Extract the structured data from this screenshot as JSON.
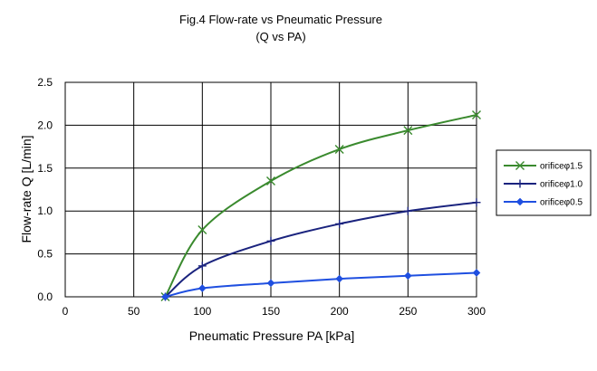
{
  "chart_data": {
    "type": "line",
    "title": "Fig.4 Flow-rate vs Pneumatic Pressure",
    "subtitle": "(Q vs PA)",
    "xlabel": "Pneumatic Pressure PA [kPa]",
    "ylabel": "Flow-rate Q [L/min]",
    "xlim": [
      0,
      300
    ],
    "ylim": [
      0,
      2.5
    ],
    "x_ticks": [
      "0",
      "50",
      "100",
      "150",
      "200",
      "250",
      "300"
    ],
    "y_ticks": [
      "0.0",
      "0.5",
      "1.0",
      "1.5",
      "2.0",
      "2.5"
    ],
    "grid": true,
    "legend_position": "right",
    "series": [
      {
        "name": "orificeφ1.5",
        "color": "#3a8a2e",
        "marker": "x-mark",
        "x": [
          73,
          100,
          150,
          200,
          250,
          300
        ],
        "y": [
          0.0,
          0.78,
          1.35,
          1.72,
          1.94,
          2.12
        ]
      },
      {
        "name": "orificeφ1.0",
        "color": "#1a237e",
        "marker": "plus",
        "x": [
          73,
          100,
          150,
          200,
          250,
          300
        ],
        "y": [
          0.0,
          0.36,
          0.65,
          0.85,
          1.0,
          1.1
        ]
      },
      {
        "name": "orificeφ0.5",
        "color": "#1f4fe0",
        "marker": "diamond",
        "x": [
          73,
          100,
          150,
          200,
          250,
          300
        ],
        "y": [
          0.0,
          0.1,
          0.16,
          0.21,
          0.245,
          0.28
        ]
      }
    ]
  }
}
